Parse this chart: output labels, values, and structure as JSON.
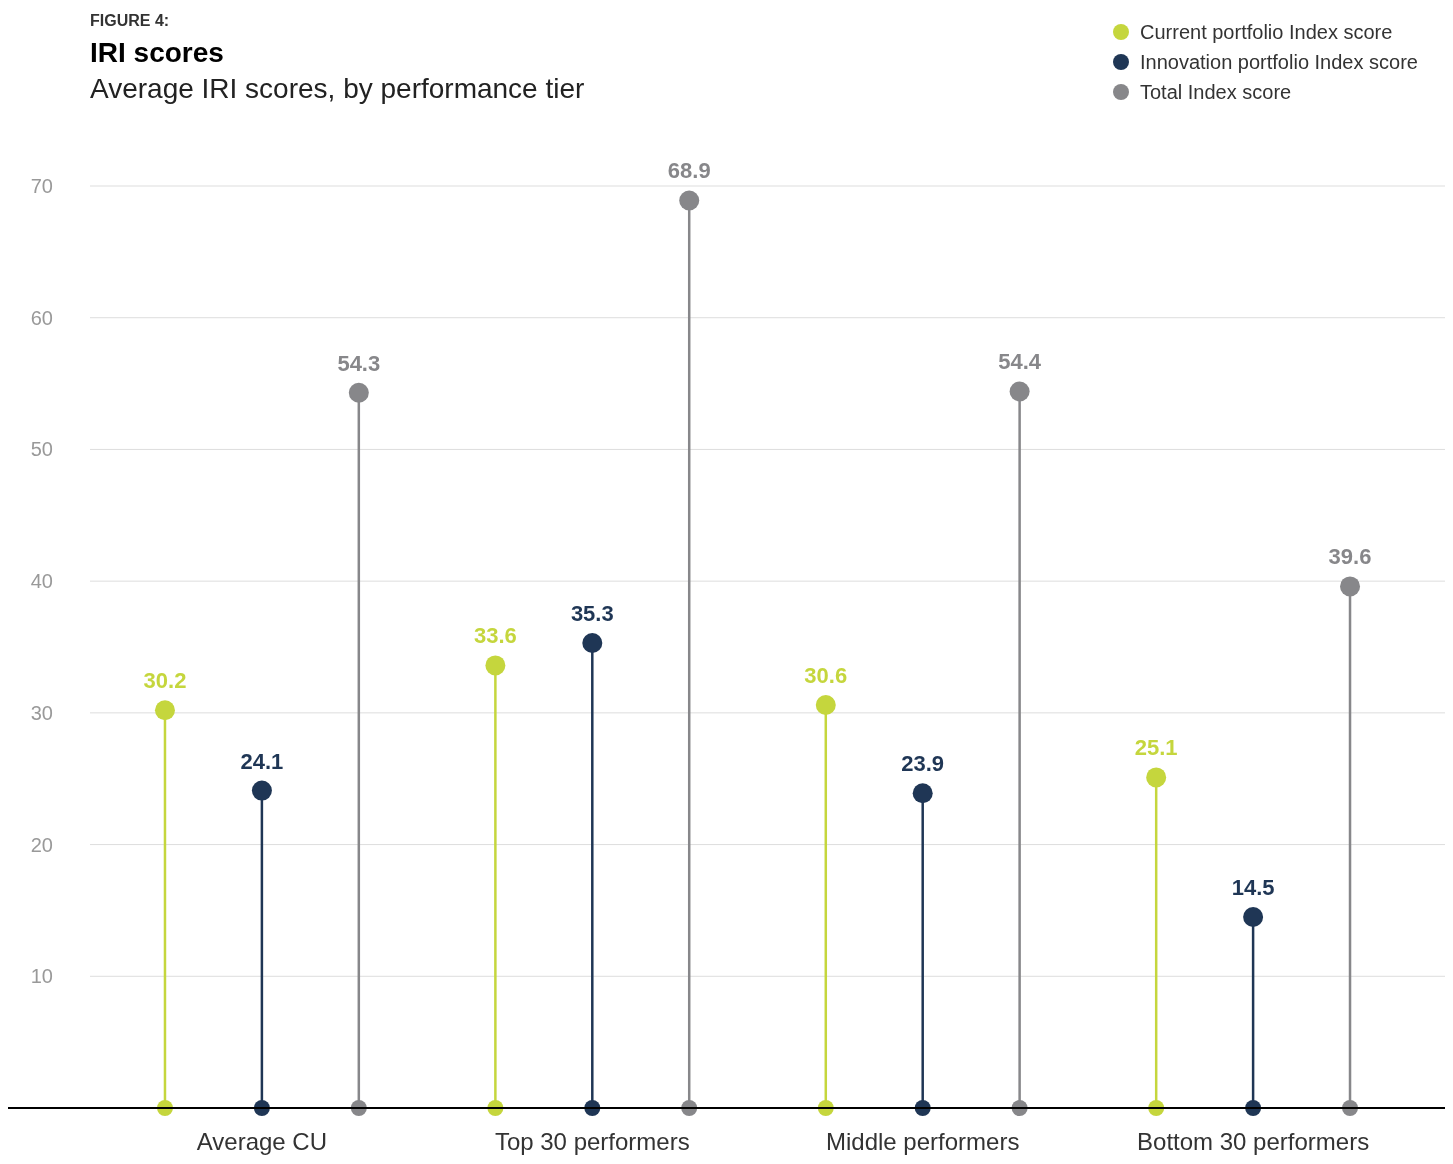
{
  "chart_data": {
    "type": "lollipop",
    "title": "IRI scores",
    "subtitle": "Average IRI scores, by performance tier",
    "annotations": [
      "FIGURE 4:"
    ],
    "categories": [
      "Average CU",
      "Top 30 performers",
      "Middle performers",
      "Bottom 30 performers"
    ],
    "series": [
      {
        "name": "Current portfolio Index score",
        "color": "#c5d63d",
        "values": [
          30.2,
          33.6,
          30.6,
          25.1
        ]
      },
      {
        "name": "Innovation portfolio Index score",
        "color": "#1f3655",
        "values": [
          24.1,
          35.3,
          23.9,
          14.5
        ]
      },
      {
        "name": "Total Index score",
        "color": "#87878a",
        "values": [
          54.3,
          68.9,
          54.4,
          39.6
        ]
      }
    ],
    "ylim": [
      0,
      70
    ],
    "yticks": [
      10,
      20,
      30,
      40,
      50,
      60,
      70
    ],
    "grid": "y",
    "legend": "top right",
    "marker": "circle",
    "data_labels": true
  }
}
